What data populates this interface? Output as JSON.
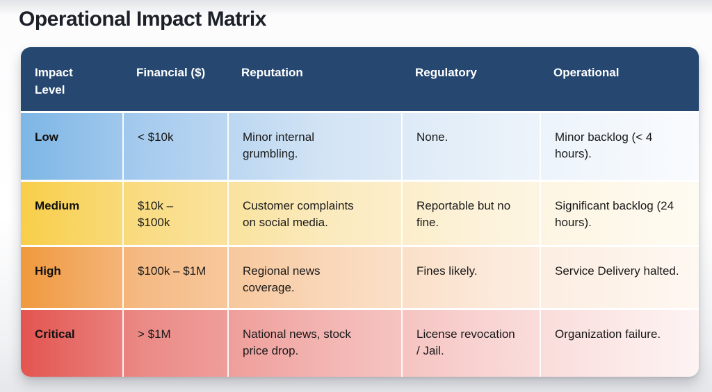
{
  "title": "Operational Impact Matrix",
  "accent_colors": {
    "header_background": "#254770",
    "header_text": "#ffffff",
    "title_text": "#1c2028",
    "low_accent": "#7db6e5",
    "medium_accent": "#f8ce49",
    "high_accent": "#f0993e",
    "critical_accent": "#e35450"
  },
  "table": {
    "columns": [
      "Impact Level",
      "Financial ($)",
      "Reputation",
      "Regulatory",
      "Operational"
    ],
    "rows": [
      {
        "level": "Low",
        "financial": "< $10k",
        "reputation": "Minor internal grumbling.",
        "regulatory": "None.",
        "operational": "Minor backlog (< 4 hours).",
        "colors": [
          "#7db6e5",
          "#a6cbee",
          "#d3e4f5",
          "#eaf2fa",
          "#f9fbfe"
        ]
      },
      {
        "level": "Medium",
        "financial": "$10k – $100k",
        "reputation": "Customer complaints on social media.",
        "regulatory": "Reportable but no fine.",
        "operational": "Significant backlog (24 hours).",
        "colors": [
          "#f8ce49",
          "#f9dc83",
          "#fbeabd",
          "#fdf4df",
          "#fefbf2"
        ]
      },
      {
        "level": "High",
        "financial": "$100k – $1M",
        "reputation": "Regional news coverage.",
        "regulatory": "Fines likely.",
        "operational": "Service Delivery halted.",
        "colors": [
          "#f0993e",
          "#f5ba84",
          "#f9d7b8",
          "#fcebdd",
          "#fef8f2"
        ]
      },
      {
        "level": "Critical",
        "financial": "> $1M",
        "reputation": "National news, stock price drop.",
        "regulatory": "License revocation / Jail.",
        "operational": "Organization failure.",
        "colors": [
          "#e35450",
          "#eb8a86",
          "#f3b5b2",
          "#f9d8d6",
          "#fdf4f3"
        ]
      }
    ]
  }
}
